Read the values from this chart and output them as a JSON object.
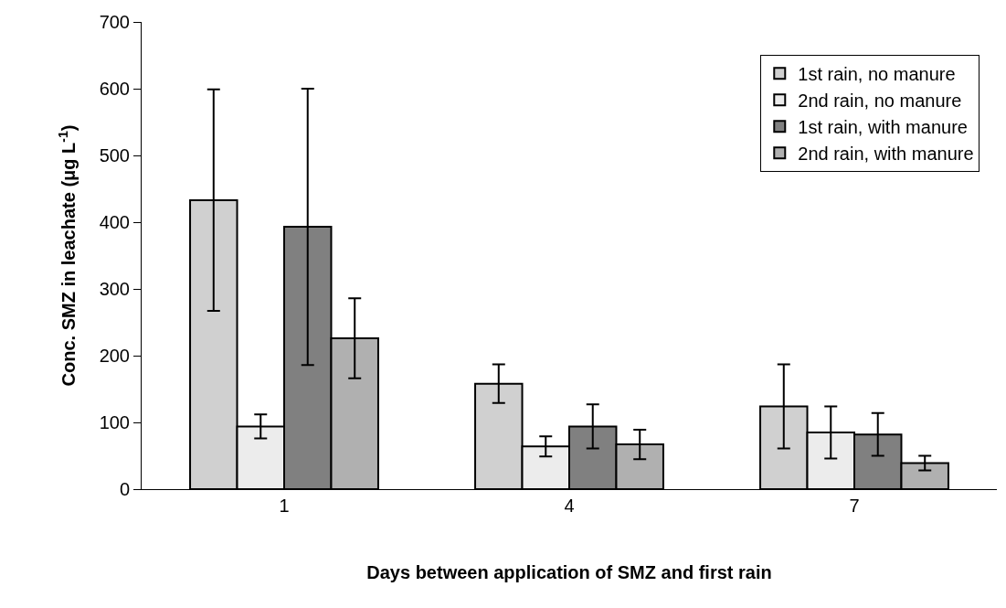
{
  "chart_data": {
    "type": "bar",
    "xlabel": "Days between application of SMZ and first rain",
    "ylabel": "Conc. SMZ in leachate (μg L$^{-1}$)",
    "categories": [
      "1",
      "4",
      "7"
    ],
    "series": [
      {
        "name": "1st rain, no manure",
        "color": "#d0d0d0",
        "values": [
          433,
          158,
          124
        ],
        "errors": [
          166,
          29,
          63
        ]
      },
      {
        "name": "2nd rain, no manure",
        "color": "#ececec",
        "values": [
          94,
          64,
          85
        ],
        "errors": [
          18,
          15,
          39
        ]
      },
      {
        "name": "1st rain, with manure",
        "color": "#808080",
        "values": [
          393,
          94,
          82
        ],
        "errors": [
          207,
          33,
          32
        ]
      },
      {
        "name": "2nd rain, with manure",
        "color": "#b0b0b0",
        "values": [
          226,
          67,
          39
        ],
        "errors": [
          60,
          22,
          11
        ]
      }
    ],
    "ylim": [
      0,
      700
    ],
    "yticks": [
      0,
      100,
      200,
      300,
      400,
      500,
      600,
      700
    ],
    "grid": false,
    "legend": "top right"
  }
}
